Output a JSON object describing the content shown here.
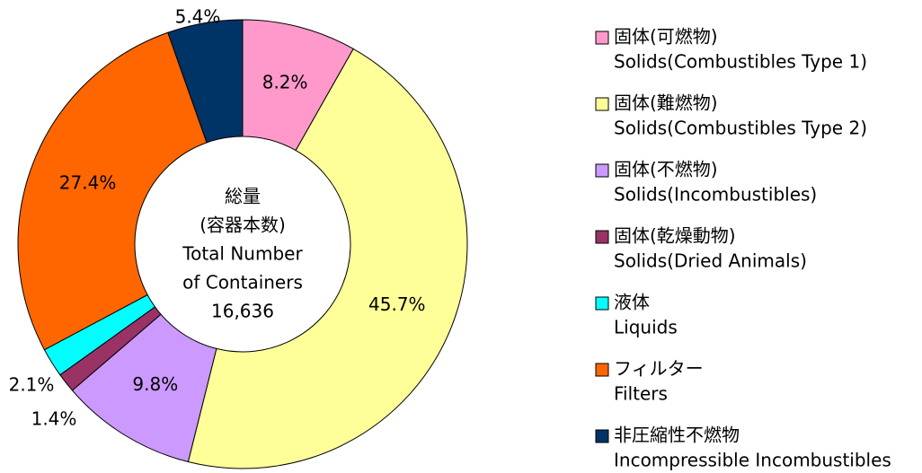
{
  "chart_data": {
    "type": "donut",
    "categories": [
      "固体(可燃物)",
      "固体(難燃物)",
      "固体(不燃物)",
      "固体(乾燥動物)",
      "液体",
      "フィルター",
      "非圧縮性不燃物"
    ],
    "category_subtitles": [
      "Solids(Combustibles Type 1)",
      "Solids(Combustibles Type 2)",
      "Solids(Incombustibles)",
      "Solids(Dried Animals)",
      "Liquids",
      "Filters",
      "Incompressible Incombustibles"
    ],
    "values": [
      8.2,
      45.7,
      9.8,
      1.4,
      2.1,
      27.4,
      5.4
    ],
    "value_labels": [
      "8.2%",
      "45.7%",
      "9.8%",
      "1.4%",
      "2.1%",
      "27.4%",
      "5.4%"
    ],
    "colors": [
      "#ff99cc",
      "#ffff99",
      "#cc99ff",
      "#993366",
      "#00ffff",
      "#ff6600",
      "#003366"
    ],
    "center_text": [
      "総量",
      "(容器本数)",
      "Total Number",
      "of Containers",
      "16,636"
    ]
  }
}
